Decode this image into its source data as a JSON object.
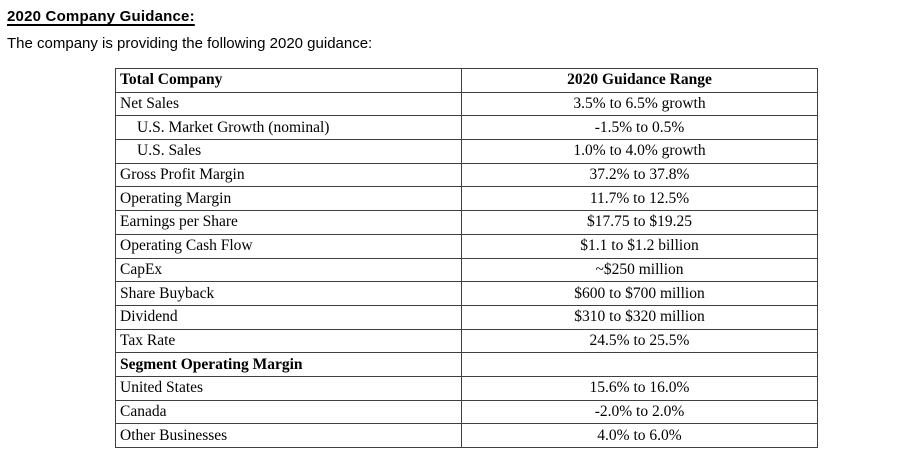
{
  "page": {
    "title": "2020 Company Guidance:",
    "intro": "The company is providing the following 2020 guidance:"
  },
  "colors": {
    "text": "#000000",
    "border": "#3f3f3f",
    "background": "#ffffff"
  },
  "table": {
    "columns": [
      "Total Company",
      "2020 Guidance Range"
    ],
    "rows": [
      {
        "label": "Net Sales",
        "value": "3.5% to 6.5% growth",
        "style": "normal"
      },
      {
        "label": "U.S. Market Growth (nominal)",
        "value": "-1.5% to 0.5%",
        "style": "indent"
      },
      {
        "label": "U.S. Sales",
        "value": "1.0% to 4.0% growth",
        "style": "indent"
      },
      {
        "label": "Gross Profit Margin",
        "value": "37.2% to 37.8%",
        "style": "normal"
      },
      {
        "label": "Operating Margin",
        "value": "11.7% to 12.5%",
        "style": "normal"
      },
      {
        "label": "Earnings per Share",
        "value": "$17.75 to $19.25",
        "style": "normal"
      },
      {
        "label": "Operating Cash Flow",
        "value": "$1.1 to $1.2 billion",
        "style": "normal"
      },
      {
        "label": "CapEx",
        "value": "~$250 million",
        "style": "normal"
      },
      {
        "label": "Share Buyback",
        "value": "$600 to $700 million",
        "style": "normal"
      },
      {
        "label": "Dividend",
        "value": "$310 to $320 million",
        "style": "normal"
      },
      {
        "label": "Tax Rate",
        "value": "24.5% to 25.5%",
        "style": "normal"
      },
      {
        "label": "Segment Operating Margin",
        "value": "",
        "style": "section"
      },
      {
        "label": "United States",
        "value": "15.6% to 16.0%",
        "style": "normal"
      },
      {
        "label": "Canada",
        "value": "-2.0% to 2.0%",
        "style": "normal"
      },
      {
        "label": "Other Businesses",
        "value": "4.0% to 6.0%",
        "style": "normal"
      }
    ]
  }
}
